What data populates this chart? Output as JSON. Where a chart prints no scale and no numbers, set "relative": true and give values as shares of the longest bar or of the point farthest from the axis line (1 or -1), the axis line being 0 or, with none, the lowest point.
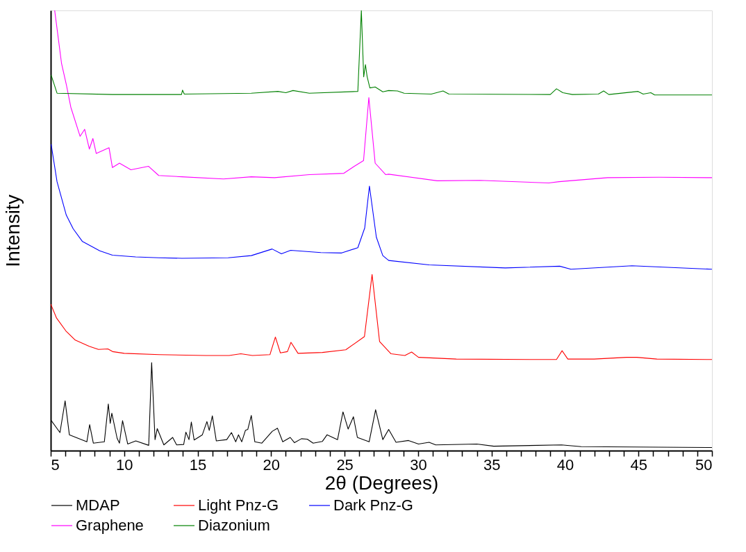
{
  "chart_data": {
    "type": "line",
    "relative": true,
    "xlabel": "2θ (Degrees)",
    "ylabel": "Intensity",
    "legend": "bottom",
    "grid": false,
    "marker": "none",
    "line_style": "solid",
    "xlim": [
      5,
      50
    ],
    "xticks": [
      5,
      {
        "value": 6,
        "label": null
      },
      {
        "value": 7,
        "label": null
      },
      {
        "value": 8,
        "label": null
      },
      {
        "value": 9,
        "label": null
      },
      10,
      {
        "value": 11,
        "label": null
      },
      {
        "value": 12,
        "label": null
      },
      {
        "value": 13,
        "label": null
      },
      {
        "value": 14,
        "label": null
      },
      15,
      {
        "value": 16,
        "label": null
      },
      {
        "value": 17,
        "label": null
      },
      {
        "value": 18,
        "label": null
      },
      {
        "value": 19,
        "label": null
      },
      20,
      {
        "value": 21,
        "label": null
      },
      {
        "value": 22,
        "label": null
      },
      {
        "value": 23,
        "label": null
      },
      {
        "value": 24,
        "label": null
      },
      25,
      {
        "value": 26,
        "label": null
      },
      {
        "value": 27,
        "label": null
      },
      {
        "value": 28,
        "label": null
      },
      {
        "value": 29,
        "label": null
      },
      30,
      {
        "value": 31,
        "label": null
      },
      {
        "value": 32,
        "label": null
      },
      {
        "value": 33,
        "label": null
      },
      {
        "value": 34,
        "label": null
      },
      35,
      {
        "value": 36,
        "label": null
      },
      {
        "value": 37,
        "label": null
      },
      {
        "value": 38,
        "label": null
      },
      {
        "value": 39,
        "label": null
      },
      40,
      {
        "value": 41,
        "label": null
      },
      {
        "value": 42,
        "label": null
      },
      {
        "value": 43,
        "label": null
      },
      {
        "value": 44,
        "label": null
      },
      45,
      {
        "value": 46,
        "label": null
      },
      {
        "value": 47,
        "label": null
      },
      {
        "value": 48,
        "label": null
      },
      {
        "value": 49,
        "label": null
      },
      50
    ],
    "series": [
      {
        "name": "MDAP",
        "color": "#000000",
        "x": [
          5.0,
          5.63,
          5.98,
          6.27,
          7.46,
          7.65,
          7.9,
          8.65,
          8.92,
          9.05,
          9.16,
          9.52,
          9.68,
          9.89,
          10.24,
          10.79,
          11.67,
          11.87,
          12.1,
          12.25,
          12.7,
          13.3,
          13.57,
          14.05,
          14.2,
          14.41,
          14.57,
          14.76,
          15.32,
          15.63,
          15.79,
          16.0,
          16.27,
          16.98,
          17.3,
          17.59,
          17.78,
          18.0,
          18.25,
          18.41,
          18.65,
          18.89,
          19.37,
          20.08,
          20.43,
          20.79,
          21.3,
          21.59,
          22.06,
          22.46,
          22.86,
          23.49,
          23.81,
          24.52,
          24.89,
          25.24,
          25.6,
          25.87,
          26.67,
          27.11,
          27.6,
          28.0,
          28.5,
          29.35,
          30.03,
          30.75,
          31.2,
          34.0,
          35.15,
          39.76,
          41.1,
          50.0
        ],
        "values": [
          0.07,
          0.041,
          0.113,
          0.036,
          0.02,
          0.059,
          0.017,
          0.02,
          0.106,
          0.062,
          0.085,
          0.028,
          0.017,
          0.068,
          0.015,
          0.022,
          0.012,
          0.2,
          0.025,
          0.05,
          0.013,
          0.03,
          0.013,
          0.014,
          0.042,
          0.025,
          0.065,
          0.024,
          0.036,
          0.066,
          0.046,
          0.079,
          0.022,
          0.025,
          0.041,
          0.02,
          0.036,
          0.02,
          0.046,
          0.048,
          0.08,
          0.02,
          0.017,
          0.044,
          0.051,
          0.02,
          0.03,
          0.018,
          0.027,
          0.026,
          0.017,
          0.021,
          0.036,
          0.025,
          0.088,
          0.049,
          0.077,
          0.03,
          0.02,
          0.093,
          0.025,
          0.048,
          0.019,
          0.023,
          0.015,
          0.019,
          0.013,
          0.015,
          0.01,
          0.013,
          0.009,
          0.007
        ]
      },
      {
        "name": "Light Pnz-G",
        "color": "#ff0000",
        "x": [
          5.0,
          5.4,
          6.03,
          6.67,
          7.62,
          8.25,
          8.89,
          9.21,
          10.0,
          12.38,
          15.56,
          17.14,
          17.94,
          18.73,
          19.92,
          20.29,
          20.63,
          21.11,
          21.35,
          21.83,
          23.49,
          25.08,
          26.35,
          26.87,
          27.38,
          28.16,
          29.1,
          29.56,
          30.03,
          32.6,
          37.7,
          39.42,
          39.8,
          40.19,
          41.98,
          44.2,
          44.88,
          46.25,
          50.0
        ],
        "values": [
          0.333,
          0.301,
          0.272,
          0.251,
          0.237,
          0.23,
          0.231,
          0.225,
          0.221,
          0.218,
          0.216,
          0.216,
          0.22,
          0.216,
          0.218,
          0.258,
          0.222,
          0.225,
          0.246,
          0.221,
          0.223,
          0.229,
          0.259,
          0.4,
          0.248,
          0.22,
          0.216,
          0.224,
          0.212,
          0.208,
          0.207,
          0.207,
          0.227,
          0.208,
          0.208,
          0.212,
          0.212,
          0.208,
          0.207
        ]
      },
      {
        "name": "Dark Pnz-G",
        "color": "#0000ff",
        "x": [
          5.03,
          5.43,
          6.06,
          6.53,
          7.16,
          8.34,
          9.2,
          10.78,
          12.35,
          13.93,
          17.08,
          18.65,
          20.07,
          20.7,
          21.33,
          23.38,
          24.8,
          25.9,
          26.37,
          26.69,
          27.16,
          27.6,
          28.0,
          30.76,
          35.93,
          39.64,
          40.4,
          44.56,
          50.0
        ],
        "values": [
          0.696,
          0.611,
          0.535,
          0.504,
          0.475,
          0.454,
          0.444,
          0.44,
          0.438,
          0.437,
          0.438,
          0.443,
          0.458,
          0.447,
          0.455,
          0.45,
          0.449,
          0.461,
          0.506,
          0.601,
          0.485,
          0.443,
          0.432,
          0.422,
          0.415,
          0.419,
          0.412,
          0.42,
          0.412
        ]
      },
      {
        "name": "Graphene",
        "color": "#ff00ff",
        "x": [
          5.27,
          5.74,
          6.06,
          6.37,
          7.0,
          7.31,
          7.63,
          7.87,
          8.1,
          8.97,
          9.2,
          9.68,
          10.46,
          11.65,
          12.35,
          13.93,
          16.76,
          18.65,
          20.23,
          22.6,
          24.95,
          25.66,
          26.29,
          26.65,
          27.08,
          27.79,
          28.0,
          31.3,
          34.2,
          38.9,
          39.6,
          42.9,
          46.4,
          50.0
        ],
        "values": [
          1.0,
          0.879,
          0.832,
          0.78,
          0.714,
          0.73,
          0.685,
          0.709,
          0.675,
          0.688,
          0.643,
          0.653,
          0.638,
          0.646,
          0.625,
          0.622,
          0.617,
          0.622,
          0.62,
          0.627,
          0.63,
          0.646,
          0.659,
          0.802,
          0.653,
          0.627,
          0.628,
          0.613,
          0.614,
          0.608,
          0.611,
          0.62,
          0.621,
          0.62
        ]
      },
      {
        "name": "Diazonium",
        "color": "#008000",
        "x": [
          5.03,
          5.43,
          9.2,
          13.9,
          13.97,
          14.09,
          18.65,
          20.46,
          21.0,
          21.49,
          22.6,
          25.9,
          26.14,
          26.3,
          26.42,
          26.53,
          26.72,
          27.08,
          27.6,
          28.0,
          28.6,
          29.05,
          30.9,
          31.7,
          32.1,
          39.0,
          39.42,
          39.85,
          40.5,
          42.27,
          42.63,
          42.98,
          44.97,
          45.32,
          45.84,
          46.1,
          50.0
        ],
        "values": [
          0.853,
          0.812,
          0.809,
          0.809,
          0.819,
          0.81,
          0.812,
          0.816,
          0.813,
          0.818,
          0.812,
          0.816,
          1.0,
          0.849,
          0.877,
          0.85,
          0.824,
          0.826,
          0.815,
          0.818,
          0.817,
          0.812,
          0.81,
          0.817,
          0.81,
          0.809,
          0.822,
          0.813,
          0.809,
          0.81,
          0.817,
          0.809,
          0.816,
          0.81,
          0.813,
          0.808,
          0.808
        ]
      }
    ]
  }
}
